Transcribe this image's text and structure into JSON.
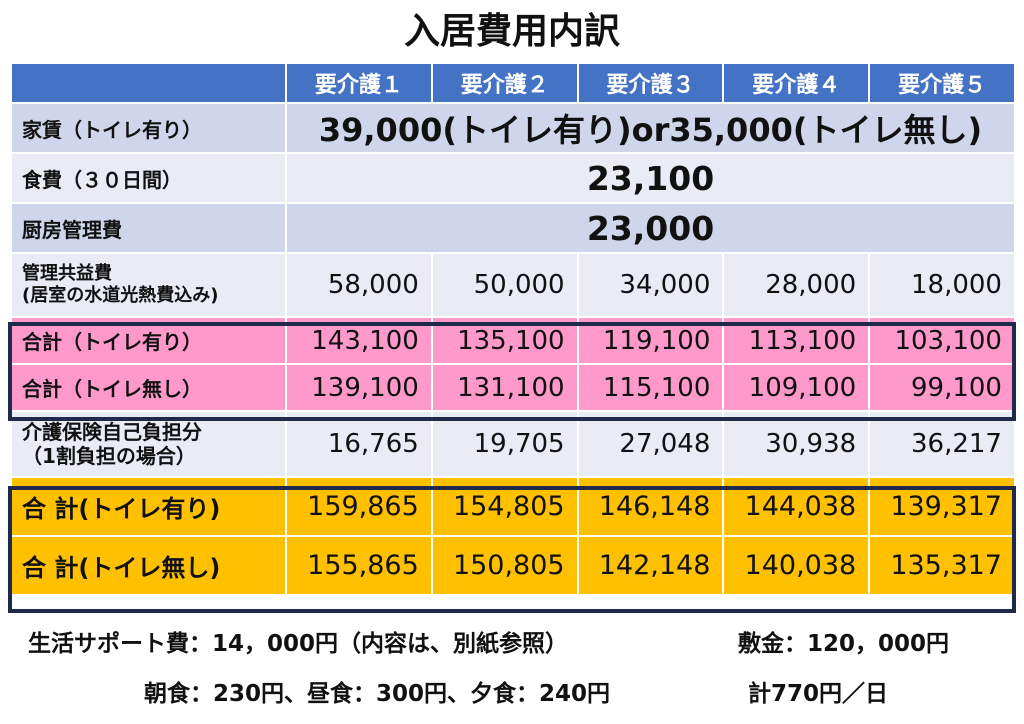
{
  "title": "入居費用内訳",
  "headers": [
    "要介護１",
    "要介護２",
    "要介護３",
    "要介護４",
    "要介護５"
  ],
  "rows": {
    "rent": {
      "label": "家賃（トイレ有り）",
      "value": "39,000(トイレ有り)or35,000(トイレ無し)"
    },
    "food": {
      "label": "食費（３０日間）",
      "value": "23,100"
    },
    "kitchen": {
      "label": "厨房管理費",
      "value": "23,000"
    },
    "mgmt": {
      "label_line1": "管理共益費",
      "label_line2": "(居室の水道光熱費込み)",
      "values": [
        "58,000",
        "50,000",
        "34,000",
        "28,000",
        "18,000"
      ]
    },
    "subtotal_with": {
      "label": "合計（トイレ有り）",
      "values": [
        "143,100",
        "135,100",
        "119,100",
        "113,100",
        "103,100"
      ]
    },
    "subtotal_without": {
      "label": "合計（トイレ無し）",
      "values": [
        "139,100",
        "131,100",
        "115,100",
        "109,100",
        "99,100"
      ]
    },
    "insurance": {
      "label_line1": "介護保険自己負担分",
      "label_line2": "（1割負担の場合）",
      "values": [
        "16,765",
        "19,705",
        "27,048",
        "30,938",
        "36,217"
      ]
    },
    "total_with": {
      "label": "合 計(トイレ有り)",
      "values": [
        "159,865",
        "154,805",
        "146,148",
        "144,038",
        "139,317"
      ]
    },
    "total_without": {
      "label": "合 計(トイレ無し)",
      "values": [
        "155,865",
        "150,805",
        "142,148",
        "140,038",
        "135,317"
      ]
    }
  },
  "footer": {
    "support": "生活サポート費：14，000円（内容は、別紙参照）",
    "deposit": "敷金：120，000円",
    "meals": "朝食：230円、昼食：300円、夕食：240円",
    "daily_total": "計770円／日"
  },
  "colors": {
    "header_blue": "#4472c4",
    "row_blue_a": "#cfd5ea",
    "row_blue_b": "#e9ebf5",
    "pink": "#ff99cc",
    "gold": "#ffc000",
    "frame": "#1f2a4a"
  }
}
